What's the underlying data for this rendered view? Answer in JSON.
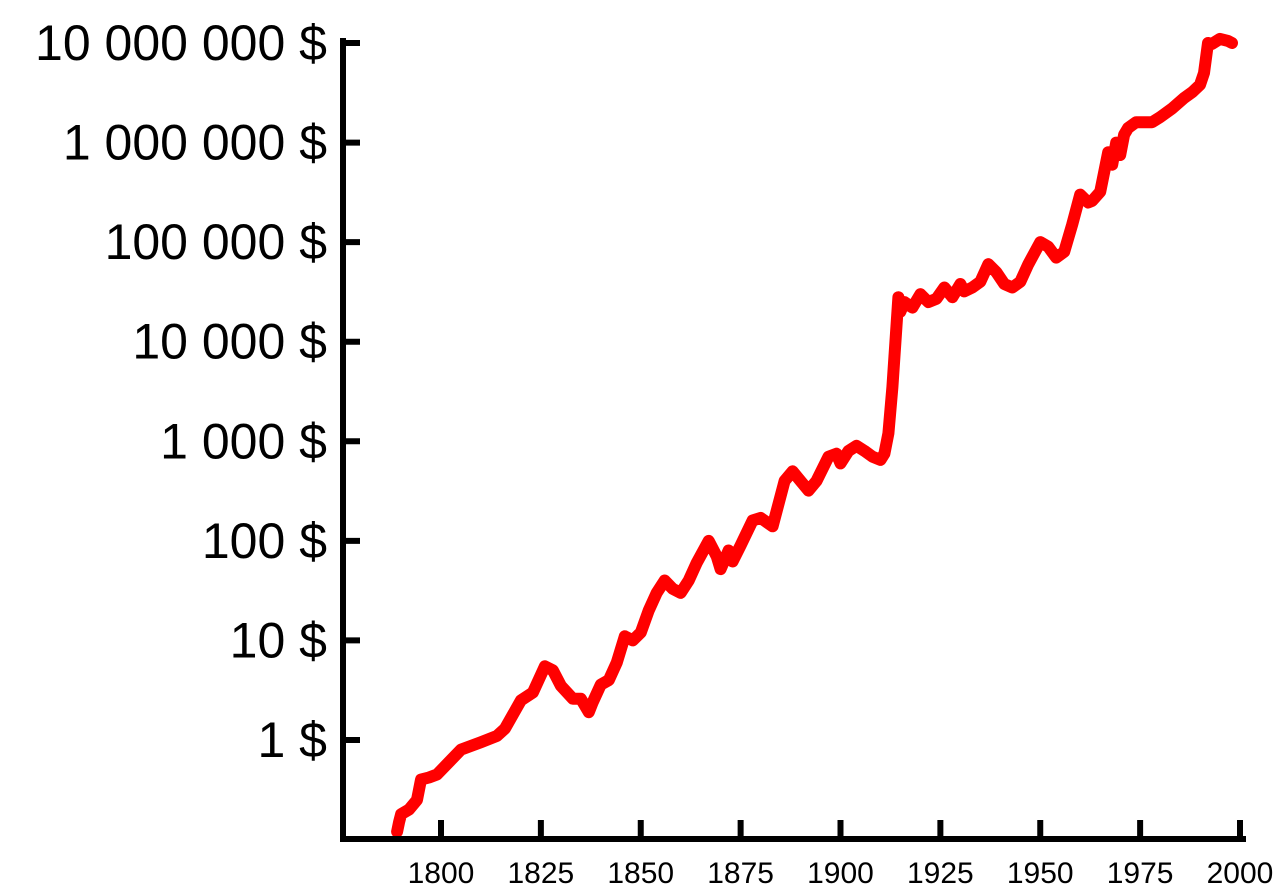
{
  "chart_data": {
    "type": "line",
    "title": "",
    "xlabel": "",
    "ylabel": "",
    "x_scale": "linear",
    "y_scale": "log",
    "xlim": [
      1775,
      2000
    ],
    "ylim": [
      0.1,
      10000000
    ],
    "xticks": [
      1800,
      1825,
      1850,
      1875,
      1900,
      1925,
      1950,
      1975,
      2000
    ],
    "xtick_labels": [
      "1800",
      "1825",
      "1850",
      "1875",
      "1900",
      "1925",
      "1950",
      "1975",
      "2000"
    ],
    "yticks": [
      1,
      10,
      100,
      1000,
      10000,
      100000,
      1000000,
      10000000
    ],
    "ytick_labels": [
      "1 $",
      "10 $",
      "100 $",
      "1 000 $",
      "10 000 $",
      "100 000 $",
      "1 000 000 $",
      "10 000 000 $"
    ],
    "grid": false,
    "legend": "none",
    "line_color": "#ff0000",
    "axis_color": "#000000",
    "series": [
      {
        "x": [
          1789,
          1789.5,
          1790,
          1792,
          1794,
          1795,
          1797,
          1799,
          1802,
          1805,
          1810,
          1814,
          1816,
          1818,
          1820,
          1823,
          1826,
          1828,
          1830,
          1833,
          1835,
          1837,
          1838,
          1840,
          1842,
          1844,
          1846,
          1848,
          1850,
          1852,
          1854,
          1856,
          1858,
          1860,
          1862,
          1864,
          1867,
          1869,
          1870,
          1872,
          1873,
          1875,
          1878,
          1880,
          1883,
          1886,
          1888,
          1890,
          1892,
          1894,
          1897,
          1899,
          1900,
          1902,
          1904,
          1906,
          1908,
          1910,
          1911,
          1912,
          1913,
          1914,
          1914.5,
          1915,
          1916,
          1918,
          1920,
          1922,
          1924,
          1926,
          1928,
          1930,
          1931,
          1933,
          1935,
          1937,
          1939,
          1941,
          1943,
          1945,
          1947,
          1950,
          1952,
          1954,
          1956,
          1958,
          1960,
          1962,
          1963,
          1965,
          1967,
          1968,
          1969,
          1970,
          1971,
          1972,
          1974,
          1976,
          1978,
          1980,
          1983,
          1986,
          1988,
          1990,
          1991,
          1992,
          1993,
          1995,
          1997,
          1998
        ],
        "values": [
          0.12,
          0.15,
          0.18,
          0.2,
          0.25,
          0.4,
          0.42,
          0.45,
          0.6,
          0.8,
          0.95,
          1.1,
          1.3,
          1.8,
          2.5,
          3.0,
          5.5,
          5.0,
          3.5,
          2.6,
          2.6,
          1.9,
          2.4,
          3.6,
          4.0,
          6.0,
          11.0,
          10.0,
          12.0,
          20.0,
          30.0,
          40.0,
          33.0,
          30.0,
          40.0,
          60.0,
          100.0,
          70.0,
          52.0,
          80.0,
          62.0,
          90.0,
          160.0,
          170.0,
          140.0,
          400.0,
          500.0,
          400.0,
          320.0,
          400.0,
          700.0,
          750.0,
          600.0,
          800.0,
          900.0,
          800.0,
          700.0,
          650.0,
          750.0,
          1200.0,
          3500.0,
          14000.0,
          28000.0,
          20000.0,
          25000.0,
          22000.0,
          30000.0,
          25000.0,
          27000.0,
          35000.0,
          28000.0,
          38000.0,
          32000.0,
          35000.0,
          40000.0,
          60000.0,
          50000.0,
          38000.0,
          35000.0,
          40000.0,
          60000.0,
          100000.0,
          90000.0,
          70000.0,
          80000.0,
          150000.0,
          300000.0,
          250000.0,
          260000.0,
          320000.0,
          800000.0,
          600000.0,
          1000000.0,
          750000.0,
          1200000.0,
          1400000.0,
          1600000.0,
          1600000.0,
          1600000.0,
          1800000.0,
          2200000.0,
          2800000.0,
          3200000.0,
          3800000.0,
          5000000.0,
          10000000.0,
          9800000.0,
          11000000.0,
          10500000.0,
          10000000.0
        ]
      }
    ]
  }
}
